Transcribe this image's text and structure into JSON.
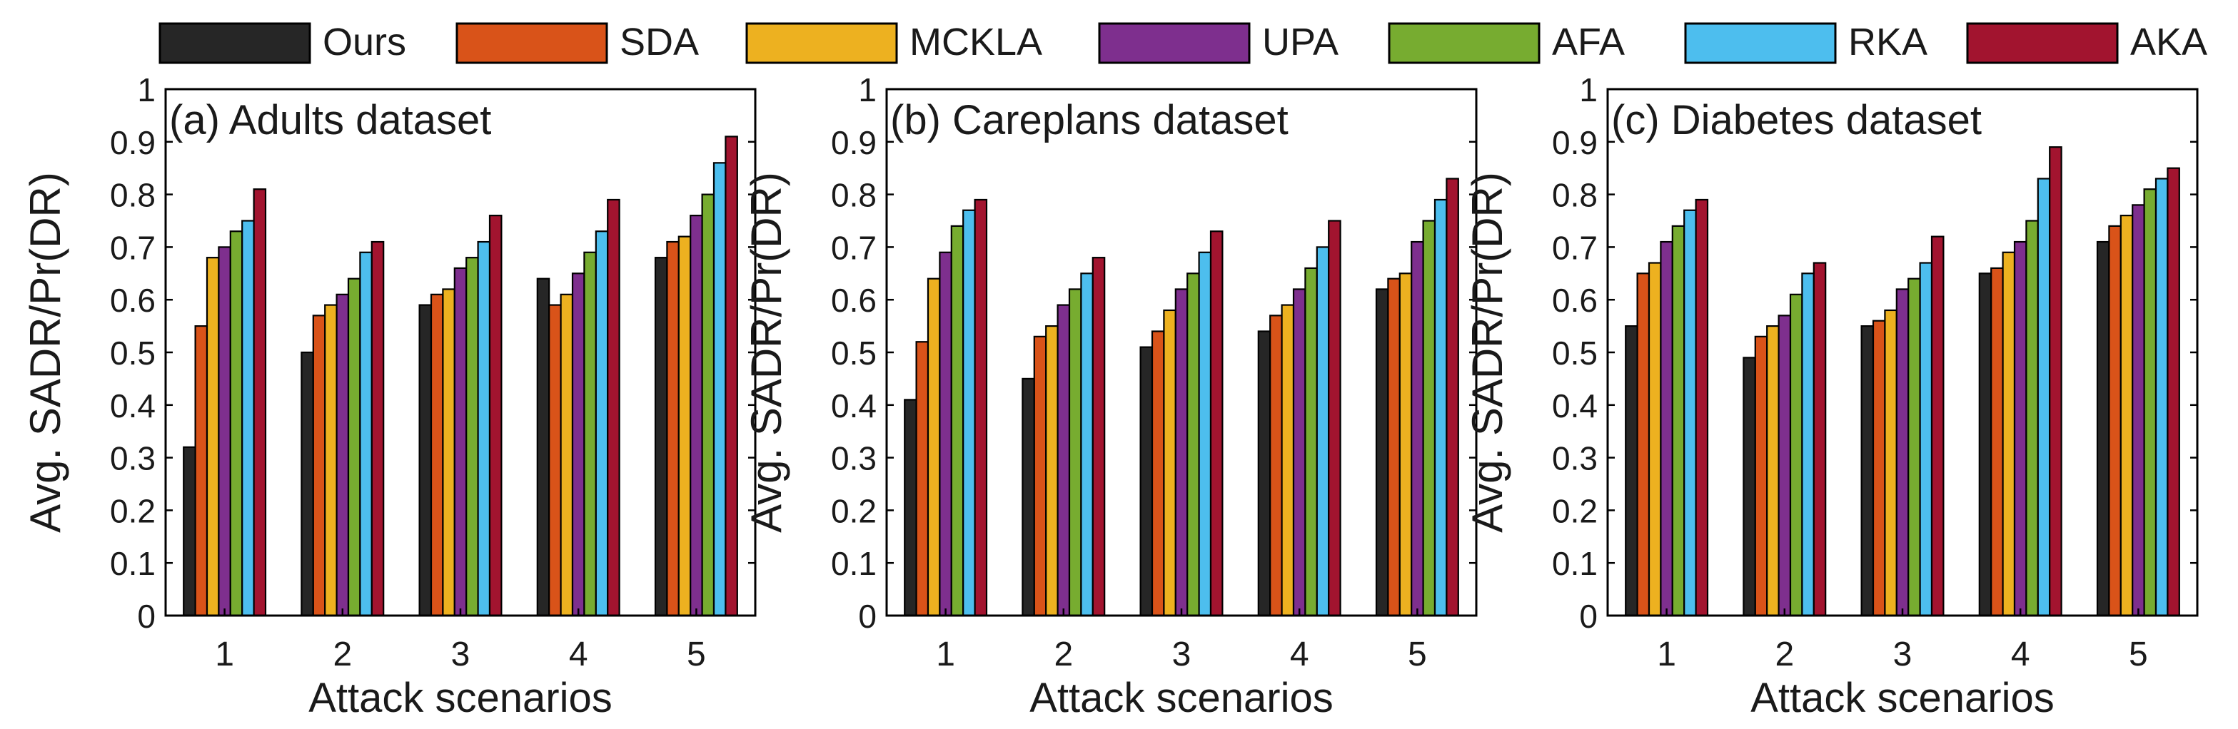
{
  "legend": [
    {
      "name": "Ours",
      "color": "#262626"
    },
    {
      "name": "SDA",
      "color": "#D95319"
    },
    {
      "name": "MCKLA",
      "color": "#EDB120"
    },
    {
      "name": "UPA",
      "color": "#7E2F8E"
    },
    {
      "name": "AFA",
      "color": "#77AC30"
    },
    {
      "name": "RKA",
      "color": "#4DBEEE"
    },
    {
      "name": "AKA",
      "color": "#A2142F"
    }
  ],
  "chart_data": [
    {
      "type": "bar",
      "title": "(a) Adults dataset",
      "xlabel": "Attack scenarios",
      "ylabel": "Avg. SADR/Pr(DR)",
      "categories": [
        "1",
        "2",
        "3",
        "4",
        "5"
      ],
      "ylim": [
        0,
        1
      ],
      "yticks": [
        "0",
        "0.1",
        "0.2",
        "0.3",
        "0.4",
        "0.5",
        "0.6",
        "0.7",
        "0.8",
        "0.9",
        "1"
      ],
      "legend_position": "top (shared)",
      "series": [
        {
          "name": "Ours",
          "values": [
            0.32,
            0.5,
            0.59,
            0.64,
            0.68
          ]
        },
        {
          "name": "SDA",
          "values": [
            0.55,
            0.57,
            0.61,
            0.59,
            0.71
          ]
        },
        {
          "name": "MCKLA",
          "values": [
            0.68,
            0.59,
            0.62,
            0.61,
            0.72
          ]
        },
        {
          "name": "UPA",
          "values": [
            0.7,
            0.61,
            0.66,
            0.65,
            0.76
          ]
        },
        {
          "name": "AFA",
          "values": [
            0.73,
            0.64,
            0.68,
            0.69,
            0.8
          ]
        },
        {
          "name": "RKA",
          "values": [
            0.75,
            0.69,
            0.71,
            0.73,
            0.86
          ]
        },
        {
          "name": "AKA",
          "values": [
            0.81,
            0.71,
            0.76,
            0.79,
            0.91
          ]
        }
      ]
    },
    {
      "type": "bar",
      "title": "(b) Careplans dataset",
      "xlabel": "Attack scenarios",
      "ylabel": "Avg. SADR/Pr(DR)",
      "categories": [
        "1",
        "2",
        "3",
        "4",
        "5"
      ],
      "ylim": [
        0,
        1
      ],
      "yticks": [
        "0",
        "0.1",
        "0.2",
        "0.3",
        "0.4",
        "0.5",
        "0.6",
        "0.7",
        "0.8",
        "0.9",
        "1"
      ],
      "legend_position": "top (shared)",
      "series": [
        {
          "name": "Ours",
          "values": [
            0.41,
            0.45,
            0.51,
            0.54,
            0.62
          ]
        },
        {
          "name": "SDA",
          "values": [
            0.52,
            0.53,
            0.54,
            0.57,
            0.64
          ]
        },
        {
          "name": "MCKLA",
          "values": [
            0.64,
            0.55,
            0.58,
            0.59,
            0.65
          ]
        },
        {
          "name": "UPA",
          "values": [
            0.69,
            0.59,
            0.62,
            0.62,
            0.71
          ]
        },
        {
          "name": "AFA",
          "values": [
            0.74,
            0.62,
            0.65,
            0.66,
            0.75
          ]
        },
        {
          "name": "RKA",
          "values": [
            0.77,
            0.65,
            0.69,
            0.7,
            0.79
          ]
        },
        {
          "name": "AKA",
          "values": [
            0.79,
            0.68,
            0.73,
            0.75,
            0.83
          ]
        }
      ]
    },
    {
      "type": "bar",
      "title": "(c) Diabetes dataset",
      "xlabel": "Attack scenarios",
      "ylabel": "Avg. SADR/Pr(DR)",
      "categories": [
        "1",
        "2",
        "3",
        "4",
        "5"
      ],
      "ylim": [
        0,
        1
      ],
      "yticks": [
        "0",
        "0.1",
        "0.2",
        "0.3",
        "0.4",
        "0.5",
        "0.6",
        "0.7",
        "0.8",
        "0.9",
        "1"
      ],
      "legend_position": "top (shared)",
      "series": [
        {
          "name": "Ours",
          "values": [
            0.55,
            0.49,
            0.55,
            0.65,
            0.71
          ]
        },
        {
          "name": "SDA",
          "values": [
            0.65,
            0.53,
            0.56,
            0.66,
            0.74
          ]
        },
        {
          "name": "MCKLA",
          "values": [
            0.67,
            0.55,
            0.58,
            0.69,
            0.76
          ]
        },
        {
          "name": "UPA",
          "values": [
            0.71,
            0.57,
            0.62,
            0.71,
            0.78
          ]
        },
        {
          "name": "AFA",
          "values": [
            0.74,
            0.61,
            0.64,
            0.75,
            0.81
          ]
        },
        {
          "name": "RKA",
          "values": [
            0.77,
            0.65,
            0.67,
            0.83,
            0.83
          ]
        },
        {
          "name": "AKA",
          "values": [
            0.79,
            0.67,
            0.72,
            0.89,
            0.85
          ]
        }
      ]
    }
  ]
}
